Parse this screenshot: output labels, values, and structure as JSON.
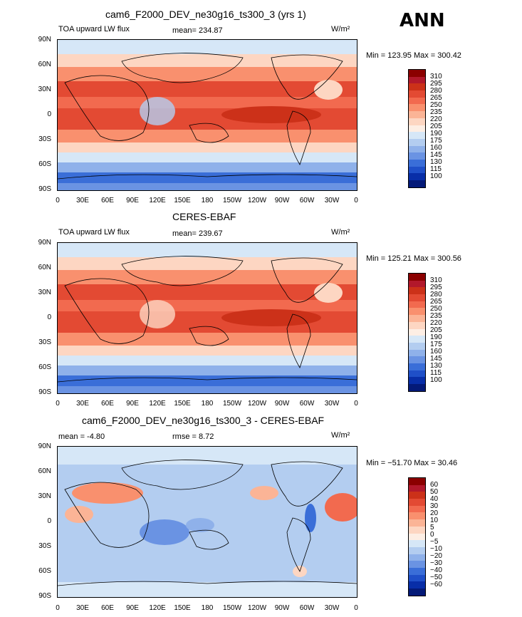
{
  "season": "ANN",
  "panels": [
    {
      "title": "cam6_F2000_DEV_ne30g16_ts300_3 (yrs 1)",
      "left_label": "TOA upward LW flux",
      "stat_label": "mean= 234.87",
      "units": "W/m²",
      "minmax": "Min = 123.95 Max = 300.42",
      "colorbar_labels": [
        "310",
        "295",
        "280",
        "265",
        "250",
        "235",
        "220",
        "205",
        "190",
        "175",
        "160",
        "145",
        "130",
        "115",
        "100"
      ],
      "colorbar_colors": [
        "#8b0000",
        "#b2182b",
        "#cc3119",
        "#e34a33",
        "#f26a4f",
        "#f9906e",
        "#fbb496",
        "#fdd6c2",
        "#fdeee4",
        "#d6e7f7",
        "#b3cdf0",
        "#8fb1ea",
        "#6a93e3",
        "#3a6ed8",
        "#1f4fc8",
        "#082ea8",
        "#041a78"
      ]
    },
    {
      "title": "CERES-EBAF",
      "left_label": "TOA upward LW flux",
      "stat_label": "mean= 239.67",
      "units": "W/m²",
      "minmax": "Min = 125.21 Max = 300.56",
      "colorbar_labels": [
        "310",
        "295",
        "280",
        "265",
        "250",
        "235",
        "220",
        "205",
        "190",
        "175",
        "160",
        "145",
        "130",
        "115",
        "100"
      ],
      "colorbar_colors": [
        "#8b0000",
        "#b2182b",
        "#cc3119",
        "#e34a33",
        "#f26a4f",
        "#f9906e",
        "#fbb496",
        "#fdd6c2",
        "#fdeee4",
        "#d6e7f7",
        "#b3cdf0",
        "#8fb1ea",
        "#6a93e3",
        "#3a6ed8",
        "#1f4fc8",
        "#082ea8",
        "#041a78"
      ]
    },
    {
      "title": "cam6_F2000_DEV_ne30g16_ts300_3 - CERES-EBAF",
      "left_label": "mean =   -4.80",
      "stat_label": "rmse =    8.72",
      "units": "W/m²",
      "minmax": "Min = −51.70 Max =  30.46",
      "colorbar_labels": [
        "60",
        "50",
        "40",
        "30",
        "20",
        "10",
        "5",
        "0",
        "−5",
        "−10",
        "−20",
        "−30",
        "−40",
        "−50",
        "−60"
      ],
      "colorbar_colors": [
        "#8b0000",
        "#b2182b",
        "#cc3119",
        "#e34a33",
        "#f26a4f",
        "#f9906e",
        "#fbb496",
        "#fdd6c2",
        "#fdeee4",
        "#d6e7f7",
        "#b3cdf0",
        "#8fb1ea",
        "#6a93e3",
        "#3a6ed8",
        "#1f4fc8",
        "#082ea8",
        "#041a78"
      ]
    }
  ],
  "lat_ticks": [
    "90N",
    "60N",
    "30N",
    "0",
    "30S",
    "60S",
    "90S"
  ],
  "lon_ticks": [
    "0",
    "30E",
    "60E",
    "90E",
    "120E",
    "150E",
    "180",
    "150W",
    "120W",
    "90W",
    "60W",
    "30W",
    "0"
  ],
  "colors": {
    "warm_band": "#e34a33",
    "pale": "#fdd6c2",
    "blue_mid": "#b3cdf0",
    "blue_deep": "#3a6ed8",
    "diff_bg": "#b3cdf0"
  }
}
